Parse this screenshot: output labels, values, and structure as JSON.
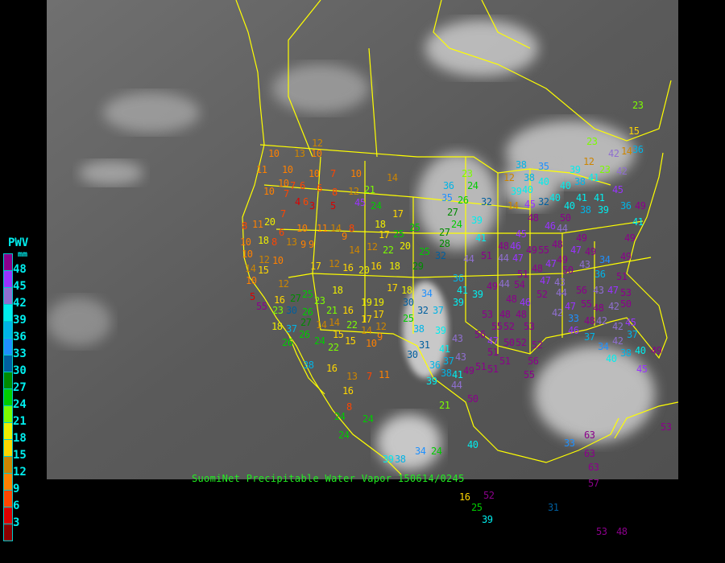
{
  "caption": "SuomiNet Precipitable Water Vapor 150614/0245",
  "legend": {
    "title": "PWV",
    "unit": "mm",
    "labels": [
      "48",
      "45",
      "42",
      "39",
      "36",
      "33",
      "30",
      "27",
      "24",
      "21",
      "18",
      "15",
      "12",
      "9",
      "6",
      "3"
    ],
    "colors": [
      "#8b008b",
      "#9933ff",
      "#8f6fd0",
      "#00eeee",
      "#00b4e6",
      "#1e90ff",
      "#005f9f",
      "#008b00",
      "#00cc00",
      "#7cfc00",
      "#eeee00",
      "#ffd700",
      "#cd8500",
      "#ff8000",
      "#ff4500",
      "#dd0000",
      "#8b0000"
    ]
  },
  "map": {
    "background": "grayscale infrared satellite image",
    "border_color": "#ffff00"
  },
  "stations": [
    "10",
    "13",
    "10",
    "12",
    "11",
    "10",
    "10",
    "7",
    "10",
    "14",
    "10",
    "7",
    "6",
    "6",
    "8",
    "12",
    "21",
    "10",
    "7",
    "4",
    "6",
    "3",
    "5",
    "45",
    "24",
    "18",
    "17",
    "7",
    "11",
    "8",
    "20",
    "6",
    "10",
    "11",
    "14",
    "8",
    "17",
    "25",
    "10",
    "18",
    "8",
    "13",
    "9",
    "9",
    "9",
    "14",
    "12",
    "10",
    "10",
    "14",
    "10",
    "15",
    "5",
    "17",
    "12",
    "16",
    "20",
    "16",
    "18",
    "12",
    "22",
    "20",
    "25",
    "29",
    "25",
    "32",
    "28",
    "36",
    "35",
    "23",
    "24",
    "26",
    "27",
    "24",
    "27",
    "39",
    "32",
    "41",
    "44",
    "36",
    "41",
    "39",
    "39",
    "17",
    "18",
    "30",
    "32",
    "34",
    "37",
    "25",
    "38",
    "39",
    "41",
    "43",
    "37",
    "43",
    "31",
    "30",
    "36",
    "38",
    "41",
    "39",
    "44",
    "49",
    "19",
    "19",
    "17",
    "17",
    "12",
    "9",
    "10",
    "18",
    "23",
    "21",
    "16",
    "14",
    "22",
    "14",
    "45",
    "48",
    "46",
    "44",
    "48",
    "50",
    "45",
    "48",
    "46",
    "49",
    "55",
    "51",
    "44",
    "47",
    "48",
    "51",
    "47",
    "54",
    "44",
    "48",
    "47",
    "49",
    "50",
    "47",
    "43",
    "49",
    "49",
    "43",
    "44",
    "46",
    "52",
    "48",
    "48",
    "53",
    "52",
    "55",
    "56",
    "47",
    "50",
    "52",
    "53",
    "52",
    "56",
    "51",
    "51",
    "51",
    "51",
    "55",
    "50",
    "49",
    "56",
    "43",
    "42",
    "47",
    "33",
    "55",
    "48",
    "48",
    "46",
    "37",
    "42",
    "42",
    "42",
    "36",
    "34",
    "40",
    "40",
    "40",
    "41",
    "38",
    "39",
    "41",
    "45",
    "42",
    "36",
    "49",
    "41",
    "49",
    "49",
    "51",
    "53",
    "47",
    "50",
    "45",
    "42",
    "37",
    "34",
    "38",
    "40",
    "40",
    "45",
    "49",
    "42",
    "23",
    "36",
    "23",
    "15",
    "23",
    "12",
    "14",
    "12",
    "38",
    "40",
    "40",
    "38",
    "39",
    "41",
    "32",
    "35",
    "39",
    "38",
    "38",
    "16",
    "13",
    "7",
    "11",
    "16",
    "8",
    "24",
    "24",
    "24",
    "34",
    "24",
    "21",
    "39",
    "38",
    "40",
    "52",
    "16",
    "25",
    "39",
    "31",
    "33",
    "63",
    "63",
    "63",
    "57",
    "53",
    "48",
    "53",
    "55",
    "23",
    "16",
    "30",
    "37",
    "26",
    "18",
    "27",
    "26",
    "24",
    "15",
    "15",
    "14",
    "22",
    "14",
    "12",
    "27",
    "25",
    "26",
    "22"
  ]
}
